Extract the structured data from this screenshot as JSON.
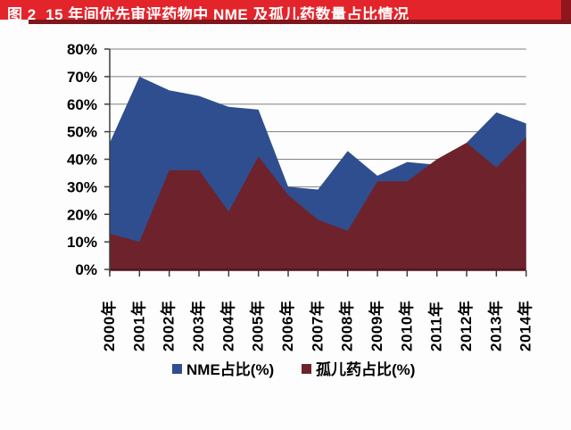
{
  "title_bar": {
    "text": "图 2  15 年间优先审评药物中 NME 及孤儿药数量占比情况",
    "bg_color": "#e3242b",
    "text_color": "#ffffff"
  },
  "chart_data": {
    "type": "area",
    "title": "",
    "categories": [
      "2000年",
      "2001年",
      "2002年",
      "2003年",
      "2004年",
      "2005年",
      "2006年",
      "2007年",
      "2008年",
      "2009年",
      "2010年",
      "2011年",
      "2012年",
      "2013年",
      "2014年"
    ],
    "series": [
      {
        "name": "NME占比(%)",
        "color": "#2f4e8f",
        "values": [
          46,
          70,
          65,
          63,
          59,
          58,
          30,
          29,
          43,
          34,
          39,
          38,
          46,
          57,
          53
        ]
      },
      {
        "name": "孤儿药占比(%)",
        "color": "#6e222b",
        "values": [
          13,
          10,
          36,
          36,
          21,
          41,
          27,
          18,
          14,
          32,
          32,
          40,
          46,
          37,
          48
        ]
      }
    ],
    "xlabel": "",
    "ylabel": "",
    "ylim": [
      0,
      80
    ],
    "ytick_step": 10,
    "ytick_labels": [
      "0%",
      "10%",
      "20%",
      "30%",
      "40%",
      "50%",
      "60%",
      "70%",
      "80%"
    ],
    "grid": true,
    "grid_color": "#7f7f7f",
    "axis_color": "#3f3f3f",
    "baseline_color": "#4f161b",
    "legend_position": "bottom"
  }
}
